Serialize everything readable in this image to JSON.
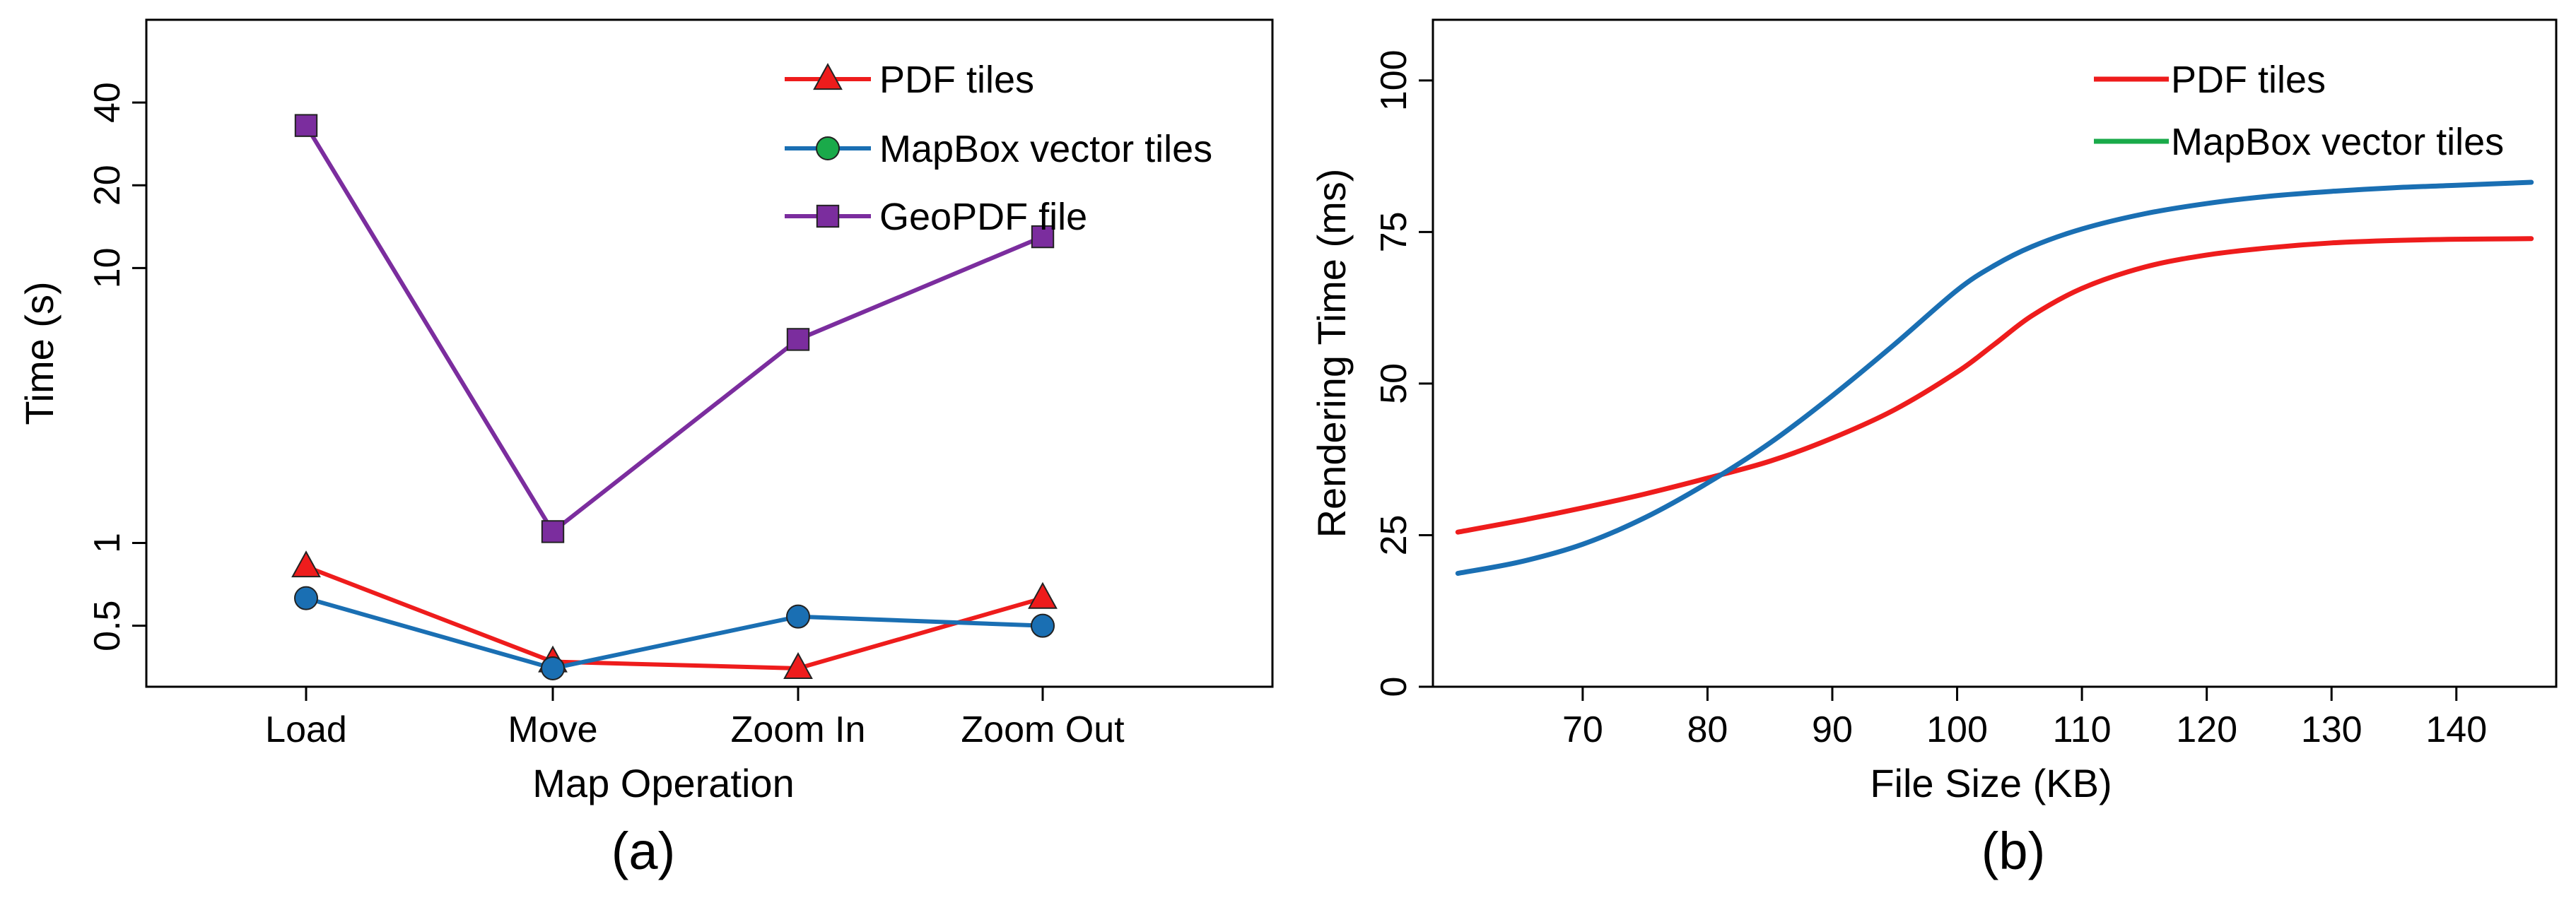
{
  "chart_data": [
    {
      "type": "line",
      "panel_label": "(a)",
      "xlabel": "Map Operation",
      "ylabel": "Time (s)",
      "yscale": "log",
      "categories": [
        "Load",
        "Move",
        "Zoom In",
        "Zoom Out"
      ],
      "yticks": [
        {
          "value": 0.5,
          "label": "0.5"
        },
        {
          "value": 1,
          "label": "1"
        },
        {
          "value": 10,
          "label": "10"
        },
        {
          "value": 20,
          "label": "20"
        },
        {
          "value": 40,
          "label": "40"
        }
      ],
      "series": [
        {
          "name": "PDF tiles",
          "marker": "triangle",
          "color": "#ee1c1c",
          "values": [
            0.82,
            0.37,
            0.35,
            0.63
          ]
        },
        {
          "name": "MapBox vector tiles",
          "marker": "circle",
          "color": "#1a6fb3",
          "marker_fill": "#1a6fb3",
          "legend_marker_fill": "#1aaa4a",
          "values": [
            0.63,
            0.35,
            0.54,
            0.5
          ]
        },
        {
          "name": "GeoPDF file",
          "marker": "square",
          "color": "#7b2d9e",
          "values": [
            33,
            1.1,
            5.5,
            13
          ]
        }
      ],
      "legend": "top-right"
    },
    {
      "type": "line",
      "panel_label": "(b)",
      "xlabel": "File Size (KB)",
      "ylabel": "Rendering Time (ms)",
      "xlim": [
        58,
        148
      ],
      "ylim": [
        0,
        110
      ],
      "xticks": [
        70,
        80,
        90,
        100,
        110,
        120,
        130,
        140
      ],
      "yticks": [
        0,
        25,
        50,
        75,
        100
      ],
      "series": [
        {
          "name": "PDF tiles",
          "color": "#ee1c1c",
          "x": [
            60,
            65,
            70,
            75,
            80,
            85,
            90,
            95,
            100,
            103,
            106,
            110,
            115,
            120,
            125,
            130,
            135,
            140,
            146
          ],
          "y": [
            25.5,
            27.4,
            29.5,
            31.8,
            34.4,
            37.2,
            41.0,
            45.7,
            51.9,
            56.5,
            61.2,
            65.7,
            69.2,
            71.2,
            72.4,
            73.2,
            73.6,
            73.8,
            73.9
          ]
        },
        {
          "name": "MapBox vector tiles",
          "color": "#1a6fb3",
          "legend_color": "#1aaa4a",
          "x": [
            60,
            65,
            70,
            75,
            80,
            85,
            90,
            95,
            100,
            103,
            106,
            110,
            115,
            120,
            125,
            130,
            135,
            140,
            146
          ],
          "y": [
            18.7,
            20.6,
            23.5,
            27.9,
            33.6,
            40.2,
            48.0,
            56.5,
            65.4,
            69.5,
            72.6,
            75.5,
            78.0,
            79.7,
            80.9,
            81.7,
            82.3,
            82.7,
            83.2
          ]
        }
      ],
      "legend": "top-right"
    }
  ]
}
